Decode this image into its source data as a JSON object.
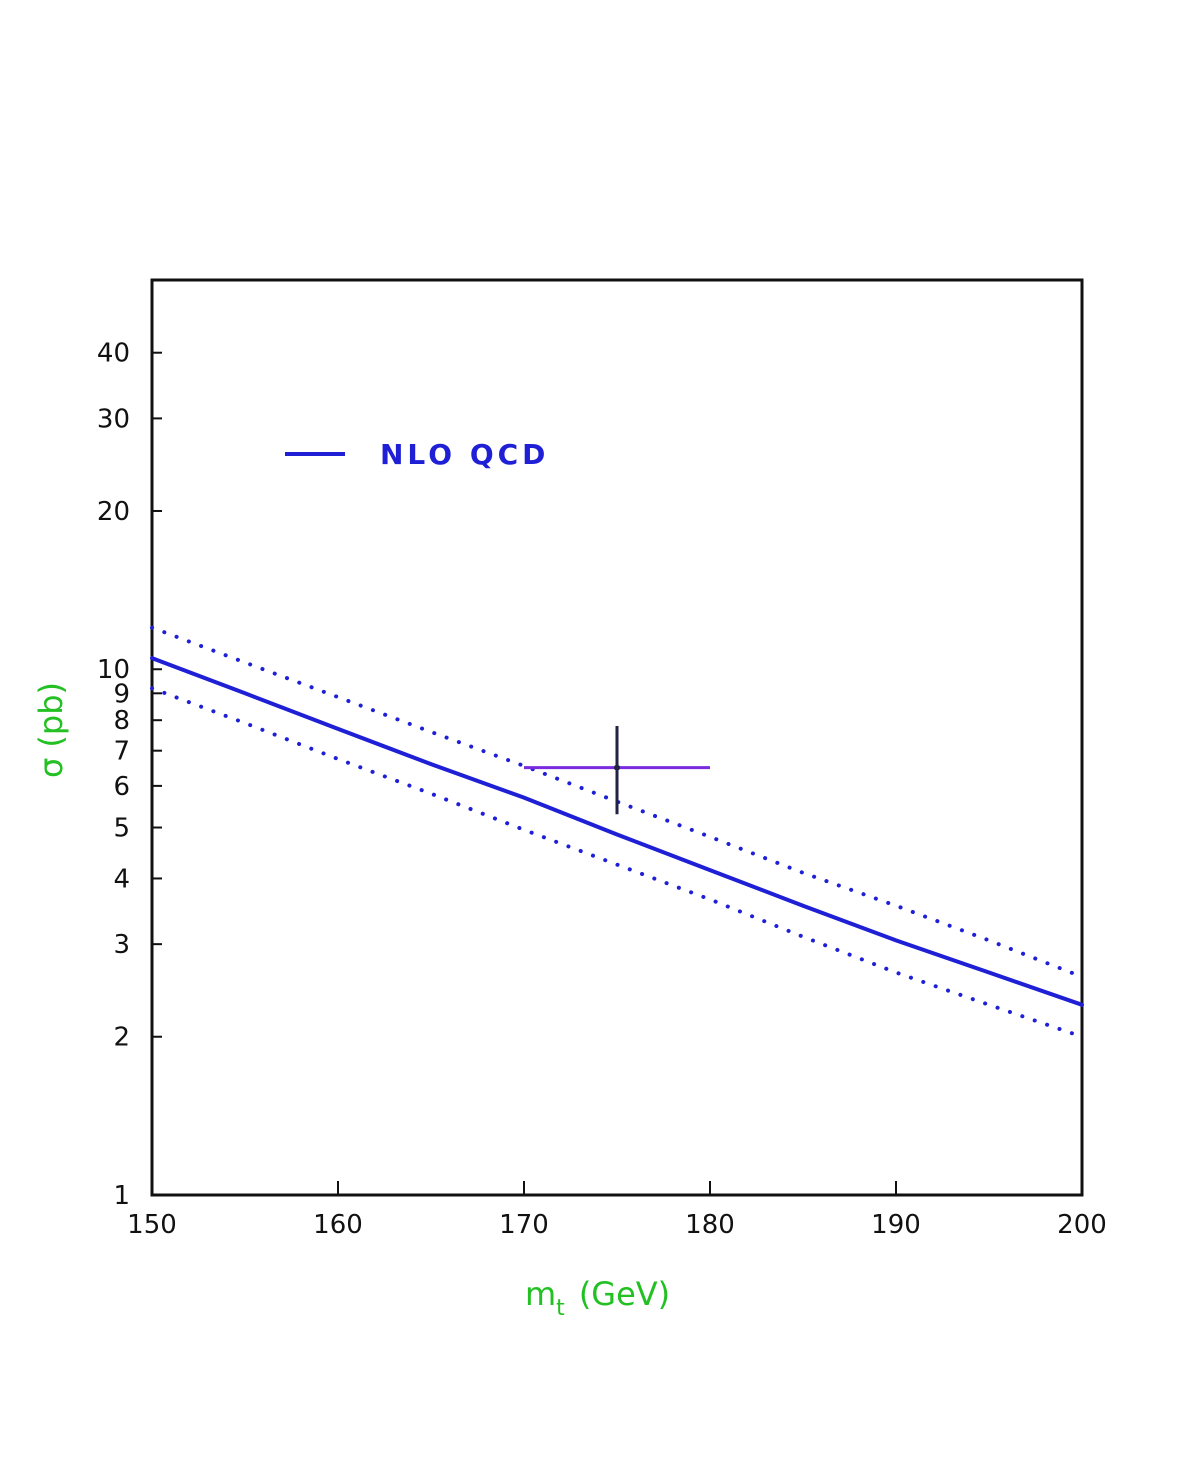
{
  "colors": {
    "central": "#1f1fd6",
    "band": "#1f1fd6",
    "measurement_h": "#7a2be0",
    "measurement_v": "#222244",
    "axis_title": "#22c022",
    "frame": "#111111"
  },
  "chart_data": {
    "type": "line",
    "title": "",
    "xlabel": "m_t (GeV)",
    "xlabel_main": "m",
    "xlabel_sub": "t",
    "xlabel_unit": "(GeV)",
    "ylabel": "σ (pb)",
    "x_scale": "linear",
    "y_scale": "log",
    "xlim": [
      150,
      200
    ],
    "ylim": [
      1,
      55
    ],
    "x_ticks": [
      150,
      160,
      170,
      180,
      190,
      200
    ],
    "x_tick_labels": [
      "150",
      "160",
      "170",
      "180",
      "190",
      "200"
    ],
    "y_ticks": [
      1,
      2,
      3,
      4,
      5,
      6,
      7,
      8,
      9,
      10,
      20,
      30,
      40
    ],
    "y_tick_labels": [
      "1",
      "2",
      "3",
      "4",
      "5",
      "6",
      "7",
      "8",
      "9",
      "10",
      "20",
      "30",
      "40"
    ],
    "legend": {
      "placement": "top-left",
      "entries": [
        {
          "label": "NLO QCD",
          "style": "solid"
        }
      ]
    },
    "x": [
      150,
      155,
      160,
      165,
      170,
      175,
      180,
      185,
      190,
      195,
      200
    ],
    "series": [
      {
        "name": "NLO QCD",
        "style": "solid",
        "values": [
          10.5,
          9.0,
          7.7,
          6.6,
          5.7,
          4.85,
          4.15,
          3.55,
          3.05,
          2.65,
          2.3
        ]
      },
      {
        "style": "dotted",
        "values": [
          12.0,
          10.3,
          8.85,
          7.6,
          6.55,
          5.6,
          4.8,
          4.1,
          3.55,
          3.05,
          2.6
        ]
      },
      {
        "style": "dotted",
        "values": [
          9.2,
          7.9,
          6.75,
          5.8,
          4.95,
          4.25,
          3.65,
          3.1,
          2.65,
          2.3,
          2.0
        ]
      }
    ],
    "measurement": {
      "x": 175,
      "y": 6.5,
      "x_err": [
        170,
        180
      ],
      "y_err": [
        5.3,
        7.8
      ]
    },
    "grid": false
  }
}
